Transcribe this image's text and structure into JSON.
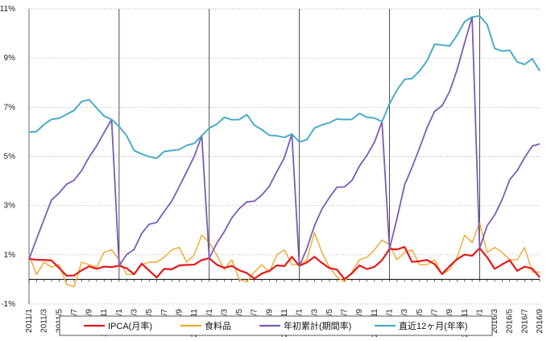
{
  "chart_data": {
    "type": "line",
    "ylim": [
      -1,
      11
    ],
    "yticks": [
      "-1%",
      "1%",
      "3%",
      "5%",
      "7%",
      "9%",
      "11%"
    ],
    "yticks_values": [
      -1,
      1,
      3,
      5,
      7,
      9,
      11
    ],
    "grid": true,
    "xtick_labels": [
      "2011/1",
      "2011/3",
      "2011/5",
      "2011/7",
      "2011/9",
      "2011/11",
      "2012/1",
      "2012/3",
      "2012/5",
      "2012/7",
      "2012/9",
      "2012/11",
      "2013/1",
      "2013/3",
      "2013/5",
      "2013/7",
      "2013/9",
      "2013/11",
      "2014/1",
      "2014/3",
      "2014/5",
      "2014/7",
      "2014/9",
      "2014/11",
      "2015/1",
      "2015/3",
      "2015/5",
      "2015/7",
      "2015/9",
      "2015/11",
      "2016/1",
      "2016/3",
      "2016/5",
      "2016/7",
      "2016/9"
    ],
    "xtick_index": [
      0,
      2,
      4,
      6,
      8,
      10,
      12,
      14,
      16,
      18,
      20,
      22,
      24,
      26,
      28,
      30,
      32,
      34,
      36,
      38,
      40,
      42,
      44,
      46,
      48,
      50,
      52,
      54,
      56,
      58,
      60,
      62,
      64,
      66,
      68
    ],
    "year_start_index": [
      12,
      24,
      36,
      48,
      60
    ],
    "legend_position": "bottom",
    "series": [
      {
        "name": "IPCA(月率)",
        "color": "#e31a1c",
        "values": [
          0.83,
          0.8,
          0.79,
          0.77,
          0.47,
          0.15,
          0.16,
          0.37,
          0.53,
          0.43,
          0.52,
          0.5,
          0.56,
          0.45,
          0.21,
          0.64,
          0.36,
          0.08,
          0.43,
          0.41,
          0.57,
          0.59,
          0.6,
          0.79,
          0.86,
          0.6,
          0.47,
          0.55,
          0.37,
          0.26,
          0.03,
          0.24,
          0.35,
          0.57,
          0.54,
          0.92,
          0.55,
          0.69,
          0.92,
          0.67,
          0.46,
          0.4,
          0.01,
          0.25,
          0.57,
          0.42,
          0.51,
          0.78,
          1.24,
          1.22,
          1.32,
          0.71,
          0.74,
          0.79,
          0.62,
          0.22,
          0.54,
          0.82,
          1.01,
          0.96,
          1.27,
          0.9,
          0.43,
          0.61,
          0.78,
          0.35,
          0.52,
          0.44,
          0.08
        ]
      },
      {
        "name": "食料品",
        "color": "#f0a830",
        "values": [
          1.0,
          0.2,
          0.7,
          0.5,
          0.6,
          -0.2,
          -0.3,
          0.7,
          0.6,
          0.5,
          1.1,
          1.2,
          0.8,
          0.2,
          0.2,
          0.6,
          0.7,
          0.7,
          0.9,
          1.2,
          1.3,
          0.7,
          1.0,
          1.8,
          1.5,
          1.0,
          0.4,
          0.8,
          0.0,
          -0.1,
          0.3,
          0.6,
          0.3,
          1.0,
          1.2,
          0.6,
          0.6,
          0.8,
          1.9,
          1.1,
          0.5,
          0.1,
          -0.1,
          0.3,
          0.8,
          0.9,
          1.2,
          1.6,
          1.4,
          0.8,
          1.1,
          1.2,
          0.6,
          0.6,
          0.8,
          0.2,
          0.4,
          0.9,
          1.8,
          1.5,
          2.3,
          1.1,
          1.3,
          1.1,
          0.8,
          0.8,
          1.3,
          0.3,
          0.3
        ]
      },
      {
        "name": "年初累計(期間率)",
        "color": "#7b5cb8",
        "values": [
          0.83,
          1.64,
          2.44,
          3.23,
          3.51,
          3.87,
          4.03,
          4.42,
          4.97,
          5.43,
          5.97,
          6.5,
          0.56,
          1.01,
          1.22,
          1.87,
          2.24,
          2.32,
          2.76,
          3.18,
          3.77,
          4.38,
          5.0,
          5.84,
          0.86,
          1.47,
          1.94,
          2.5,
          2.88,
          3.15,
          3.18,
          3.43,
          3.79,
          4.38,
          4.95,
          5.91,
          0.55,
          1.25,
          2.18,
          2.86,
          3.33,
          3.75,
          3.76,
          4.02,
          4.61,
          5.05,
          5.58,
          6.41,
          1.24,
          2.48,
          3.83,
          4.56,
          5.34,
          6.17,
          6.83,
          7.06,
          7.64,
          8.52,
          9.62,
          10.67,
          1.27,
          2.18,
          2.62,
          3.25,
          4.05,
          4.42,
          4.96,
          5.42,
          5.51
        ]
      },
      {
        "name": "直近12ヶ月(年率)",
        "color": "#4bacc6",
        "values": [
          5.99,
          6.01,
          6.3,
          6.51,
          6.55,
          6.71,
          6.87,
          7.23,
          7.31,
          6.97,
          6.64,
          6.5,
          6.22,
          5.84,
          5.24,
          5.1,
          4.99,
          4.92,
          5.2,
          5.24,
          5.28,
          5.45,
          5.53,
          5.84,
          6.15,
          6.31,
          6.59,
          6.49,
          6.5,
          6.7,
          6.27,
          6.09,
          5.86,
          5.84,
          5.77,
          5.91,
          5.59,
          5.68,
          6.15,
          6.28,
          6.37,
          6.52,
          6.5,
          6.51,
          6.75,
          6.59,
          6.56,
          6.41,
          7.14,
          7.7,
          8.13,
          8.17,
          8.47,
          8.89,
          9.56,
          9.53,
          9.49,
          9.93,
          10.48,
          10.67,
          10.71,
          10.36,
          9.39,
          9.28,
          9.32,
          8.84,
          8.74,
          8.97,
          8.48
        ]
      }
    ]
  }
}
